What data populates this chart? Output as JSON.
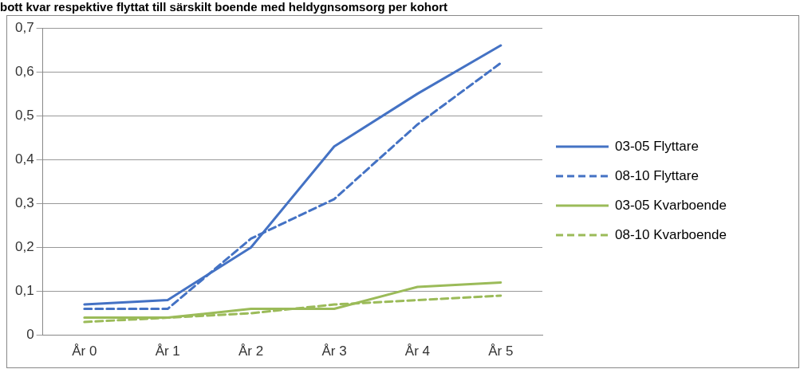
{
  "chart_data": {
    "type": "line",
    "title": "bott kvar respektive flyttat till särskilt boende med heldygnsomsorg per kohort",
    "categories": [
      "År 0",
      "År 1",
      "År 2",
      "År 3",
      "År 4",
      "År 5"
    ],
    "series": [
      {
        "name": "03-05 Flyttare",
        "color": "#4472c4",
        "line_style": "solid",
        "values": [
          0.07,
          0.08,
          0.2,
          0.43,
          0.55,
          0.66
        ]
      },
      {
        "name": "08-10 Flyttare",
        "color": "#4472c4",
        "line_style": "dashed",
        "values": [
          0.06,
          0.06,
          0.22,
          0.31,
          0.48,
          0.62
        ]
      },
      {
        "name": "03-05 Kvarboende",
        "color": "#9bbb59",
        "line_style": "solid",
        "values": [
          0.04,
          0.04,
          0.06,
          0.06,
          0.11,
          0.12
        ]
      },
      {
        "name": "08-10 Kvarboende",
        "color": "#9bbb59",
        "line_style": "dashed",
        "values": [
          0.03,
          0.04,
          0.05,
          0.07,
          0.08,
          0.09
        ]
      }
    ],
    "ylim": [
      0,
      0.7
    ],
    "yticks": [
      0,
      {
        "value": 0.1,
        "label": "0,1"
      },
      {
        "value": 0.2,
        "label": "0,2"
      },
      {
        "value": 0.3,
        "label": "0,3"
      },
      {
        "value": 0.4,
        "label": "0,4"
      },
      {
        "value": 0.5,
        "label": "0,5"
      },
      {
        "value": 0.6,
        "label": "0,6"
      },
      {
        "value": 0.7,
        "label": "0,7"
      }
    ],
    "grid": "y",
    "legend": "right",
    "marker": "none"
  }
}
